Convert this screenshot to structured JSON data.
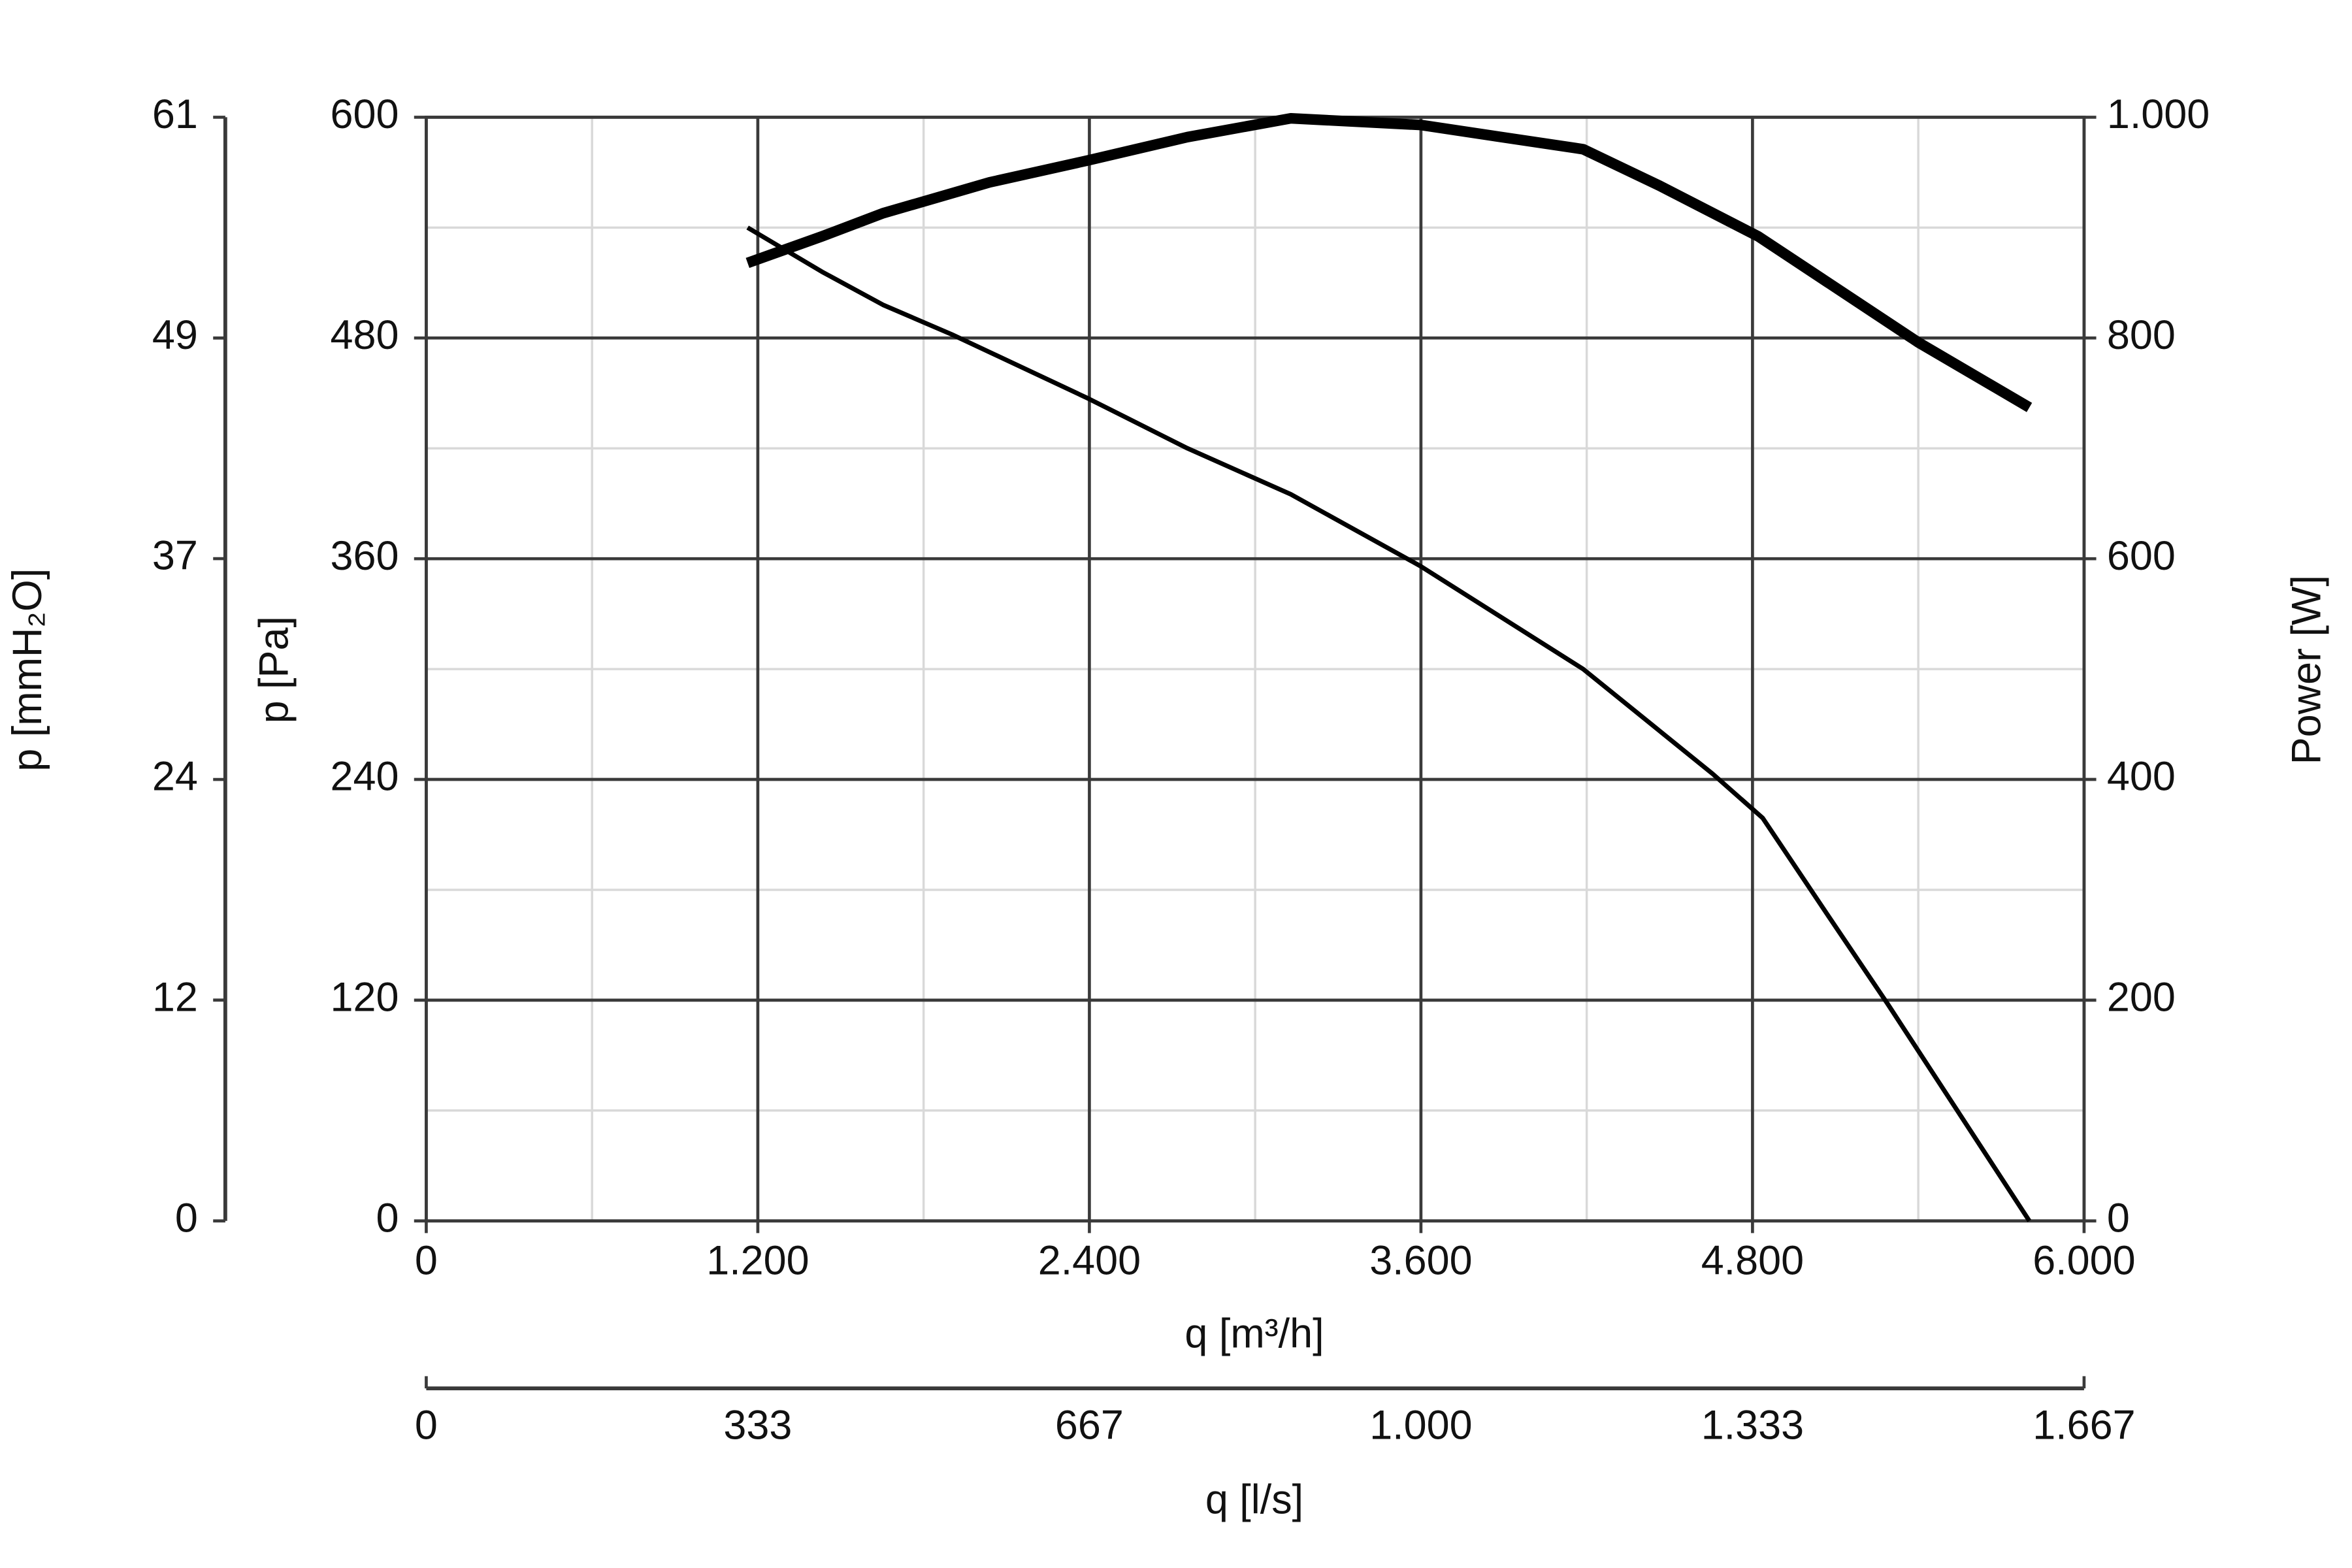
{
  "chart_data": {
    "type": "line",
    "x_label": "q [m³/h]",
    "x2_label": "q [l/s]",
    "y_label": "p [Pa]",
    "y2_label": "Power [W]",
    "y3_label": "p [mmH₂O]",
    "xlim": [
      0,
      6000
    ],
    "xticks": [
      0,
      {
        "value": 1200,
        "label": "1.200"
      },
      {
        "value": 2400,
        "label": "2.400"
      },
      {
        "value": 3600,
        "label": "3.600"
      },
      {
        "value": 4800,
        "label": "4.800"
      },
      {
        "value": 6000,
        "label": "6.000"
      }
    ],
    "x2lim": [
      0,
      1666.67
    ],
    "x2ticks": [
      0,
      {
        "value": 333.33,
        "label": "333"
      },
      {
        "value": 666.67,
        "label": "667"
      },
      {
        "value": 1000,
        "label": "1.000"
      },
      {
        "value": 1333.33,
        "label": "1.333"
      },
      {
        "value": 1666.67,
        "label": "1.667"
      }
    ],
    "ylim": [
      0,
      600
    ],
    "yticks": [
      0,
      120,
      240,
      360,
      480,
      600
    ],
    "y2lim": [
      0,
      1000
    ],
    "y2ticks": [
      0,
      200,
      400,
      600,
      800,
      {
        "value": 1000,
        "label": "1.000"
      }
    ],
    "y3lim": [
      0,
      61.18
    ],
    "y3ticks": [
      0,
      {
        "value": 12.24,
        "label": "12"
      },
      {
        "value": 24.47,
        "label": "24"
      },
      {
        "value": 36.71,
        "label": "37"
      },
      {
        "value": 48.94,
        "label": "49"
      },
      {
        "value": 61.18,
        "label": "61"
      }
    ],
    "grid": true,
    "minor_grid": true,
    "series": [
      {
        "color": "#000000",
        "width": 3,
        "axis": "y",
        "x": [
          1163,
          1432,
          1653,
          1901,
          2397,
          2755,
          3129,
          3598,
          4187,
          4656,
          4837,
          5069,
          5289,
          5802
        ],
        "values": [
          540,
          516,
          498,
          482,
          447,
          420,
          395,
          356,
          300,
          243,
          219,
          167,
          118,
          0
        ]
      },
      {
        "color": "#000000",
        "width": 7,
        "axis": "y2",
        "x": [
          1163,
          1432,
          1653,
          2039,
          2397,
          2755,
          3129,
          3598,
          4187,
          4463,
          4821,
          5400,
          5802
        ],
        "values": [
          868,
          892,
          913,
          941,
          961,
          982,
          999,
          993,
          971,
          938,
          892,
          796,
          737
        ]
      }
    ]
  }
}
